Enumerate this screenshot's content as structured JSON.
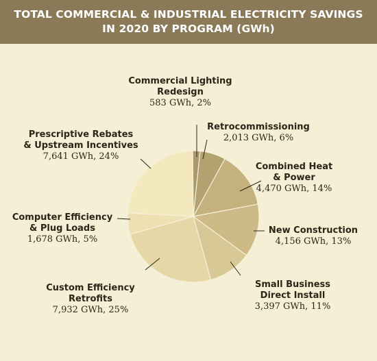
{
  "chart_data": {
    "type": "pie",
    "title_lines": [
      "TOTAL COMMERCIAL & INDUSTRIAL ELECTRICITY SAVINGS",
      "IN 2020 BY PROGRAM (GWh)"
    ],
    "slices": [
      {
        "key": "commercial-lighting-redesign",
        "name_lines": [
          "Commercial Lighting",
          "Redesign"
        ],
        "value": 583,
        "value_label": "583 GWh, 2%",
        "color": "#a89a6e"
      },
      {
        "key": "retrocommissioning",
        "name_lines": [
          "Retrocommissioning"
        ],
        "value": 2013,
        "value_label": "2,013 GWh, 6%",
        "color": "#b3a270"
      },
      {
        "key": "combined-heat-power",
        "name_lines": [
          "Combined Heat",
          "& Power"
        ],
        "value": 4470,
        "value_label": "4,470 GWh, 14%",
        "color": "#c4b17e"
      },
      {
        "key": "new-construction",
        "name_lines": [
          "New Construction"
        ],
        "value": 4156,
        "value_label": "4,156 GWh, 13%",
        "color": "#cdba86"
      },
      {
        "key": "small-business-direct-install",
        "name_lines": [
          "Small Business",
          "Direct Install"
        ],
        "value": 3397,
        "value_label": "3,397 GWh, 11%",
        "color": "#d8c895"
      },
      {
        "key": "custom-efficiency-retrofits",
        "name_lines": [
          "Custom Efficiency",
          "Retrofits"
        ],
        "value": 7932,
        "value_label": "7,932 GWh, 25%",
        "color": "#e6d7a6"
      },
      {
        "key": "computer-efficiency-plug-loads",
        "name_lines": [
          "Computer Efficiency",
          "& Plug Loads"
        ],
        "value": 1678,
        "value_label": "1,678 GWh, 5%",
        "color": "#ede0b2"
      },
      {
        "key": "prescriptive-rebates-upstream",
        "name_lines": [
          "Prescriptive Rebates",
          "& Upstream Incentives"
        ],
        "value": 7641,
        "value_label": "7,641 GWh, 24%",
        "color": "#f4e8bf"
      }
    ]
  }
}
